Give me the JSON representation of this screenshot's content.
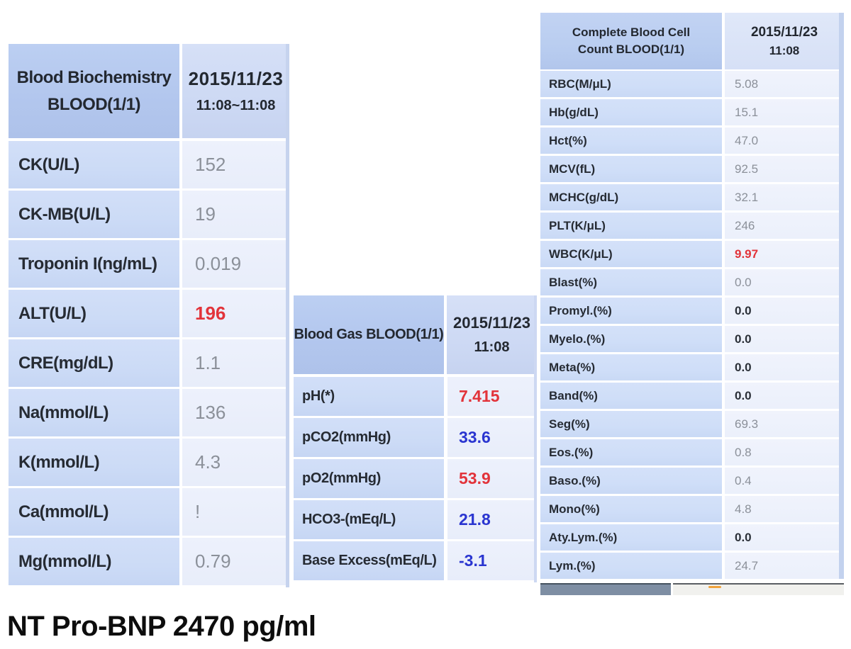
{
  "colors": {
    "red": "#e2333a",
    "blue": "#2a35d0",
    "gray": "#8b9099",
    "dark": "#2a2f37",
    "orange": "#f0a23c"
  },
  "tables": [
    {
      "name": "blood-biochemistry",
      "title_lines": [
        "Blood Biochemistry",
        "BLOOD(1/1)"
      ],
      "date": "2015/11/23",
      "time": "11:08~11:08",
      "rows": [
        {
          "label": "CK(U/L)",
          "value": "152",
          "color": "gray"
        },
        {
          "label": "CK-MB(U/L)",
          "value": "19",
          "color": "gray"
        },
        {
          "label": "Troponin I(ng/mL)",
          "value": "0.019",
          "color": "gray"
        },
        {
          "label": "ALT(U/L)",
          "value": "196",
          "color": "red"
        },
        {
          "label": "CRE(mg/dL)",
          "value": "1.1",
          "color": "gray"
        },
        {
          "label": "Na(mmol/L)",
          "value": "136",
          "color": "gray"
        },
        {
          "label": "K(mmol/L)",
          "value": "4.3",
          "color": "gray"
        },
        {
          "label": "Ca(mmol/L)",
          "value": "!",
          "color": "gray"
        },
        {
          "label": "Mg(mmol/L)",
          "value": "0.79",
          "color": "gray"
        }
      ]
    },
    {
      "name": "blood-gas",
      "title_lines": [
        "Blood Gas BLOOD(1/1)"
      ],
      "date": "2015/11/23",
      "time": "11:08",
      "rows": [
        {
          "label": "pH(*)",
          "value": "7.415",
          "color": "red"
        },
        {
          "label": "pCO2(mmHg)",
          "value": "33.6",
          "color": "blue"
        },
        {
          "label": "pO2(mmHg)",
          "value": "53.9",
          "color": "red"
        },
        {
          "label": "HCO3-(mEq/L)",
          "value": "21.8",
          "color": "blue"
        },
        {
          "label": "Base Excess(mEq/L)",
          "value": "-3.1",
          "color": "blue"
        }
      ]
    },
    {
      "name": "complete-blood-cell-count",
      "title_lines": [
        "Complete Blood Cell",
        "Count BLOOD(1/1)"
      ],
      "date": "2015/11/23",
      "time": "11:08",
      "rows": [
        {
          "label": "RBC(M/μL)",
          "value": "5.08",
          "color": "gray"
        },
        {
          "label": "Hb(g/dL)",
          "value": "15.1",
          "color": "gray"
        },
        {
          "label": "Hct(%)",
          "value": "47.0",
          "color": "gray"
        },
        {
          "label": "MCV(fL)",
          "value": "92.5",
          "color": "gray"
        },
        {
          "label": "MCHC(g/dL)",
          "value": "32.1",
          "color": "gray"
        },
        {
          "label": "PLT(K/μL)",
          "value": "246",
          "color": "gray"
        },
        {
          "label": "WBC(K/μL)",
          "value": "9.97",
          "color": "red"
        },
        {
          "label": "Blast(%)",
          "value": "0.0",
          "color": "gray"
        },
        {
          "label": "Promyl.(%)",
          "value": "0.0",
          "color": "dark"
        },
        {
          "label": "Myelo.(%)",
          "value": "0.0",
          "color": "dark"
        },
        {
          "label": "Meta(%)",
          "value": "0.0",
          "color": "dark"
        },
        {
          "label": "Band(%)",
          "value": "0.0",
          "color": "dark"
        },
        {
          "label": "Seg(%)",
          "value": "69.3",
          "color": "gray"
        },
        {
          "label": "Eos.(%)",
          "value": "0.8",
          "color": "gray"
        },
        {
          "label": "Baso.(%)",
          "value": "0.4",
          "color": "gray"
        },
        {
          "label": "Mono(%)",
          "value": "4.8",
          "color": "gray"
        },
        {
          "label": "Aty.Lym.(%)",
          "value": "0.0",
          "color": "dark"
        },
        {
          "label": "Lym.(%)",
          "value": "24.7",
          "color": "gray"
        }
      ]
    }
  ],
  "footer_note": "NT Pro-BNP 2470 pg/ml"
}
